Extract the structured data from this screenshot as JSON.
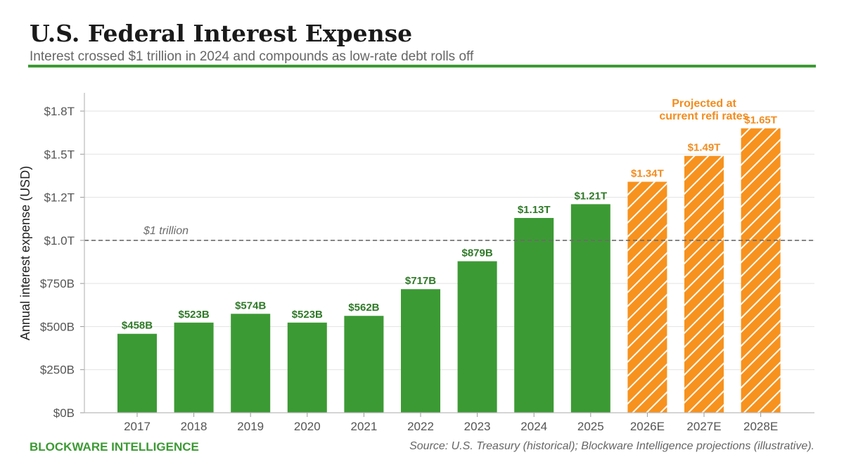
{
  "header": {
    "title": "U.S. Federal Interest Expense",
    "subtitle": "Interest crossed $1 trillion in 2024 and compounds as low-rate debt rolls off"
  },
  "footer": {
    "brand": "BLOCKWARE INTELLIGENCE",
    "source": "Source: U.S. Treasury (historical); Blockware Intelligence projections (illustrative)."
  },
  "colors": {
    "historical": "#3c9a34",
    "historical_label": "#2f7a28",
    "projected": "#f7921e",
    "projected_label": "#f28c1f",
    "reference_line": "#6b6b6b"
  },
  "chart_data": {
    "type": "bar",
    "ylabel": "Annual interest expense (USD)",
    "xlabel": "",
    "ylim": [
      0,
      1.75
    ],
    "yunit": "trillion USD",
    "yticks": [
      0,
      0.25,
      0.5,
      0.75,
      1.0,
      1.25,
      1.5,
      1.75
    ],
    "ytick_labels": [
      "$0B",
      "$250B",
      "$500B",
      "$750B",
      "$1.0T",
      "$1.2T",
      "$1.5T",
      "$1.8T"
    ],
    "grid": true,
    "categories": [
      "2017",
      "2018",
      "2019",
      "2020",
      "2021",
      "2022",
      "2023",
      "2024",
      "2025",
      "2026E",
      "2027E",
      "2028E"
    ],
    "values": [
      0.458,
      0.523,
      0.574,
      0.523,
      0.562,
      0.717,
      0.879,
      1.13,
      1.21,
      1.34,
      1.49,
      1.65
    ],
    "value_labels": [
      "$458B",
      "$523B",
      "$574B",
      "$523B",
      "$562B",
      "$717B",
      "$879B",
      "$1.13T",
      "$1.21T",
      "$1.34T",
      "$1.49T",
      "$1.65T"
    ],
    "projected": [
      false,
      false,
      false,
      false,
      false,
      false,
      false,
      false,
      false,
      true,
      true,
      true
    ],
    "reference_line": {
      "value": 1.0,
      "label": "$1 trillion"
    },
    "annotation": {
      "lines": [
        "Projected at",
        "current refi rates"
      ],
      "category": "2027E"
    }
  }
}
